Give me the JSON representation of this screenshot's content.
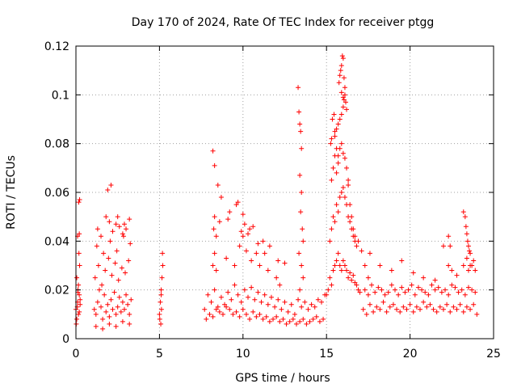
{
  "chart_data": {
    "type": "scatter",
    "title": "Day 170 of 2024, Rate Of TEC Index for receiver ptgg",
    "xlabel": "GPS time / hours",
    "ylabel": "ROTI / TECUs",
    "xlim": [
      0,
      25
    ],
    "ylim": [
      0,
      0.12
    ],
    "xticks": [
      0,
      5,
      10,
      15,
      20,
      25
    ],
    "xtick_labels": [
      "0",
      "5",
      "10",
      "15",
      "20",
      "25"
    ],
    "yticks": [
      0,
      0.02,
      0.04,
      0.06,
      0.08,
      0.1,
      0.12
    ],
    "ytick_labels": [
      "0",
      "0.02",
      "0.04",
      "0.06",
      "0.08",
      "0.1",
      "0.12"
    ],
    "grid": true,
    "marker": "+",
    "color": "#ff0000",
    "series": [
      {
        "name": "ROTI",
        "x": [
          0.0,
          0.05,
          0.1,
          0.15,
          0.2,
          0.25,
          0.05,
          0.12,
          0.18,
          0.22,
          0.02,
          0.08,
          0.15,
          0.2,
          0.1,
          0.17,
          0.22,
          0.25,
          0.12,
          0.2,
          1.1,
          1.2,
          1.3,
          1.4,
          1.5,
          1.6,
          1.7,
          1.8,
          1.9,
          2.0,
          2.1,
          2.2,
          2.3,
          2.4,
          2.5,
          2.6,
          2.7,
          2.8,
          2.9,
          3.0,
          3.1,
          3.2,
          3.3,
          1.15,
          1.35,
          1.55,
          1.75,
          1.95,
          2.15,
          2.35,
          2.55,
          2.75,
          2.95,
          3.15,
          1.25,
          1.65,
          2.05,
          2.45,
          2.85,
          3.25,
          1.3,
          1.5,
          1.8,
          2.0,
          2.2,
          2.4,
          2.6,
          2.8,
          3.0,
          3.2,
          1.2,
          1.6,
          2.0,
          2.4,
          2.8,
          3.2,
          1.9,
          2.1,
          2.5,
          2.9,
          5.0,
          5.05,
          5.1,
          5.15,
          5.2,
          5.08,
          5.12,
          5.18,
          5.02,
          5.1,
          7.7,
          7.9,
          8.1,
          8.3,
          8.5,
          8.7,
          8.9,
          9.1,
          9.3,
          9.5,
          9.7,
          9.9,
          10.1,
          10.3,
          10.5,
          10.7,
          10.9,
          11.1,
          11.3,
          11.5,
          11.7,
          11.9,
          12.1,
          12.3,
          12.5,
          12.7,
          12.9,
          13.1,
          13.3,
          13.5,
          13.7,
          13.9,
          14.1,
          14.3,
          14.5,
          14.7,
          14.9,
          7.8,
          8.0,
          8.2,
          8.4,
          8.6,
          8.8,
          9.0,
          9.2,
          9.4,
          9.6,
          9.8,
          10.0,
          10.2,
          10.4,
          10.6,
          10.8,
          11.0,
          11.2,
          11.4,
          11.6,
          11.8,
          12.0,
          12.2,
          12.4,
          12.6,
          12.8,
          13.0,
          13.2,
          13.4,
          13.6,
          13.8,
          14.0,
          14.2,
          14.4,
          14.6,
          14.8,
          8.2,
          8.3,
          8.4,
          9.0,
          9.5,
          9.8,
          10.0,
          10.2,
          10.5,
          10.8,
          11.0,
          11.5,
          12.0,
          12.2,
          8.25,
          8.3,
          8.4,
          8.6,
          9.2,
          9.6,
          9.9,
          10.1,
          10.3,
          10.6,
          11.2,
          11.6,
          12.1,
          8.2,
          8.3,
          8.5,
          8.7,
          9.1,
          9.7,
          10.0,
          10.4,
          10.9,
          11.3,
          12.5,
          13.3,
          13.35,
          13.4,
          13.45,
          13.5,
          13.4,
          13.5,
          13.45,
          13.55,
          13.6,
          13.35,
          13.5,
          13.6,
          13.4,
          15.0,
          15.1,
          15.2,
          15.3,
          15.4,
          15.5,
          15.6,
          15.7,
          15.8,
          15.9,
          16.0,
          16.1,
          16.2,
          16.3,
          16.4,
          16.5,
          16.6,
          16.7,
          16.8,
          16.9,
          17.0,
          15.2,
          15.3,
          15.4,
          15.5,
          15.6,
          15.7,
          15.8,
          15.9,
          16.0,
          16.1,
          16.2,
          16.3,
          16.4,
          16.5,
          16.6,
          16.7,
          16.8,
          15.3,
          15.4,
          15.5,
          15.6,
          15.7,
          15.8,
          15.9,
          16.0,
          16.1,
          16.2,
          16.3,
          15.5,
          15.6,
          15.7,
          15.8,
          15.9,
          16.0,
          16.05,
          16.1,
          16.15,
          16.2,
          15.75,
          15.8,
          15.85,
          15.9,
          15.95,
          16.0,
          16.05,
          16.1,
          15.9,
          16.0,
          15.25,
          15.3,
          15.35,
          15.45,
          15.5,
          15.6,
          15.7,
          16.3,
          16.4,
          16.5,
          16.6,
          16.7,
          16.9,
          17.1,
          17.3,
          17.5,
          17.2,
          17.4,
          17.6,
          17.8,
          18.0,
          18.2,
          18.4,
          18.6,
          18.8,
          19.0,
          19.2,
          19.4,
          19.6,
          19.8,
          20.0,
          20.2,
          20.4,
          20.6,
          20.8,
          21.0,
          21.2,
          21.4,
          21.6,
          21.8,
          22.0,
          22.2,
          22.4,
          22.6,
          22.8,
          23.0,
          23.2,
          23.4,
          23.6,
          23.8,
          24.0,
          17.3,
          17.5,
          17.7,
          17.9,
          18.1,
          18.3,
          18.5,
          18.7,
          18.9,
          19.1,
          19.3,
          19.5,
          19.7,
          19.9,
          20.1,
          20.3,
          20.5,
          20.7,
          20.9,
          21.1,
          21.3,
          21.5,
          21.7,
          21.9,
          22.1,
          22.3,
          22.5,
          22.7,
          22.9,
          23.1,
          23.3,
          23.5,
          23.7,
          23.9,
          17.6,
          18.2,
          18.9,
          19.5,
          20.2,
          20.8,
          21.5,
          22.0,
          22.3,
          22.5,
          22.8,
          23.2,
          23.4,
          23.5,
          23.6,
          23.7,
          23.8,
          23.9,
          23.2,
          23.3,
          23.35,
          23.4,
          23.45,
          23.5,
          23.55,
          23.6,
          22.3,
          22.4
        ],
        "y": [
          0.012,
          0.008,
          0.015,
          0.01,
          0.018,
          0.014,
          0.025,
          0.02,
          0.035,
          0.03,
          0.006,
          0.013,
          0.022,
          0.043,
          0.042,
          0.056,
          0.057,
          0.016,
          0.019,
          0.011,
          0.012,
          0.01,
          0.015,
          0.02,
          0.013,
          0.008,
          0.018,
          0.011,
          0.014,
          0.009,
          0.016,
          0.012,
          0.019,
          0.01,
          0.013,
          0.017,
          0.011,
          0.015,
          0.012,
          0.018,
          0.014,
          0.01,
          0.016,
          0.025,
          0.03,
          0.022,
          0.028,
          0.033,
          0.026,
          0.031,
          0.024,
          0.029,
          0.027,
          0.032,
          0.038,
          0.035,
          0.04,
          0.036,
          0.042,
          0.039,
          0.045,
          0.042,
          0.05,
          0.048,
          0.044,
          0.047,
          0.046,
          0.043,
          0.045,
          0.049,
          0.005,
          0.004,
          0.006,
          0.005,
          0.007,
          0.006,
          0.061,
          0.063,
          0.05,
          0.047,
          0.01,
          0.015,
          0.02,
          0.025,
          0.03,
          0.006,
          0.012,
          0.035,
          0.008,
          0.018,
          0.012,
          0.018,
          0.015,
          0.02,
          0.013,
          0.017,
          0.014,
          0.019,
          0.016,
          0.022,
          0.018,
          0.015,
          0.02,
          0.017,
          0.021,
          0.016,
          0.019,
          0.015,
          0.018,
          0.014,
          0.017,
          0.013,
          0.016,
          0.012,
          0.015,
          0.011,
          0.014,
          0.01,
          0.016,
          0.013,
          0.015,
          0.012,
          0.014,
          0.013,
          0.016,
          0.015,
          0.018,
          0.008,
          0.01,
          0.009,
          0.012,
          0.011,
          0.01,
          0.013,
          0.012,
          0.01,
          0.011,
          0.009,
          0.012,
          0.01,
          0.008,
          0.011,
          0.009,
          0.01,
          0.008,
          0.009,
          0.007,
          0.008,
          0.009,
          0.007,
          0.008,
          0.006,
          0.007,
          0.008,
          0.006,
          0.007,
          0.008,
          0.006,
          0.007,
          0.008,
          0.009,
          0.007,
          0.008,
          0.03,
          0.035,
          0.028,
          0.033,
          0.03,
          0.038,
          0.042,
          0.036,
          0.032,
          0.035,
          0.03,
          0.028,
          0.025,
          0.022,
          0.045,
          0.05,
          0.042,
          0.048,
          0.052,
          0.055,
          0.044,
          0.047,
          0.043,
          0.046,
          0.04,
          0.038,
          0.032,
          0.077,
          0.071,
          0.063,
          0.058,
          0.049,
          0.056,
          0.051,
          0.045,
          0.039,
          0.035,
          0.031,
          0.103,
          0.093,
          0.088,
          0.085,
          0.078,
          0.067,
          0.06,
          0.052,
          0.045,
          0.04,
          0.035,
          0.03,
          0.025,
          0.02,
          0.018,
          0.02,
          0.025,
          0.022,
          0.028,
          0.03,
          0.032,
          0.035,
          0.03,
          0.028,
          0.032,
          0.03,
          0.028,
          0.025,
          0.027,
          0.024,
          0.026,
          0.023,
          0.022,
          0.02,
          0.019,
          0.04,
          0.045,
          0.05,
          0.048,
          0.055,
          0.052,
          0.058,
          0.06,
          0.062,
          0.058,
          0.055,
          0.05,
          0.048,
          0.045,
          0.042,
          0.04,
          0.038,
          0.065,
          0.07,
          0.075,
          0.068,
          0.072,
          0.078,
          0.08,
          0.076,
          0.074,
          0.07,
          0.065,
          0.083,
          0.086,
          0.088,
          0.09,
          0.092,
          0.095,
          0.098,
          0.1,
          0.097,
          0.094,
          0.105,
          0.108,
          0.11,
          0.112,
          0.116,
          0.115,
          0.107,
          0.103,
          0.101,
          0.099,
          0.08,
          0.082,
          0.09,
          0.092,
          0.085,
          0.078,
          0.075,
          0.063,
          0.055,
          0.05,
          0.045,
          0.042,
          0.04,
          0.036,
          0.03,
          0.025,
          0.012,
          0.01,
          0.014,
          0.011,
          0.013,
          0.012,
          0.015,
          0.011,
          0.013,
          0.014,
          0.012,
          0.011,
          0.013,
          0.012,
          0.014,
          0.011,
          0.013,
          0.012,
          0.015,
          0.013,
          0.014,
          0.012,
          0.011,
          0.013,
          0.012,
          0.014,
          0.011,
          0.013,
          0.012,
          0.014,
          0.011,
          0.013,
          0.012,
          0.014,
          0.01,
          0.02,
          0.018,
          0.022,
          0.019,
          0.021,
          0.02,
          0.018,
          0.019,
          0.022,
          0.02,
          0.018,
          0.021,
          0.019,
          0.02,
          0.022,
          0.018,
          0.021,
          0.02,
          0.019,
          0.018,
          0.022,
          0.02,
          0.021,
          0.019,
          0.02,
          0.018,
          0.022,
          0.021,
          0.019,
          0.02,
          0.018,
          0.021,
          0.02,
          0.019,
          0.035,
          0.03,
          0.028,
          0.032,
          0.027,
          0.025,
          0.024,
          0.038,
          0.03,
          0.028,
          0.026,
          0.03,
          0.033,
          0.028,
          0.035,
          0.03,
          0.032,
          0.028,
          0.052,
          0.05,
          0.046,
          0.043,
          0.04,
          0.038,
          0.036,
          0.03,
          0.042,
          0.038
        ]
      }
    ]
  }
}
